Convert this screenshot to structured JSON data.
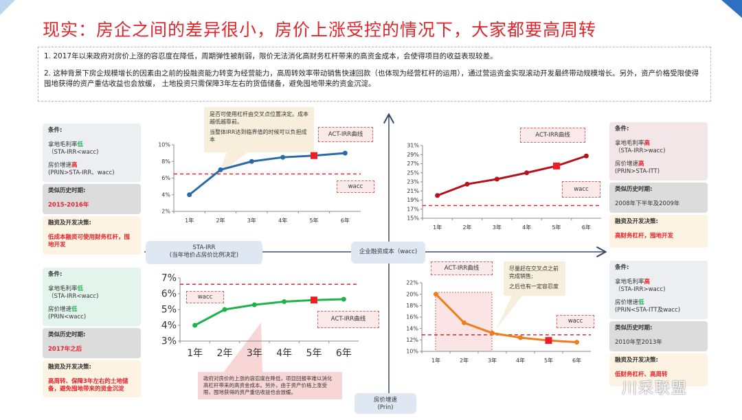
{
  "title": "现实：房企之间的差异很小，房价上涨受控的情况下，大家都要高周转",
  "summary": [
    "1. 2017年以来政府对房价上涨的容忍度在降低，周期弹性被削弱，限价无法消化高财务杠杆带来的高资金成本，会使得项目的收益表现较差。",
    "2. 这种背景下房企规模增长的因素由之前的投融资能力转变为经营能力，高周转效率带动销售快速回款（也体现为经营杠杆的运用），通过营运资金实现滚动开发最终带动规模增长。另外，资产价格受限使得囤地获得的资产重估收益也会放缓， 土地投资只需保障3年左右的货值储备，避免囤地带来的资金沉淀。"
  ],
  "axes": {
    "x_label_line1": "STA-IRR",
    "x_label_line2": "(当年地价占房价比例决定)",
    "center_label": "企业融资成本（wacc)",
    "y_label_line1": "房价增速",
    "y_label_line2": "(Prin)"
  },
  "panels": {
    "top_left": {
      "cond_title": "条件:",
      "c1a": "拿地毛利率",
      "c1b": "低",
      "c1c": "（STA-IRR<wacc)",
      "c2a": "房价增速",
      "c2b": "高",
      "c2c": "(PRIN>STA-IRR、wacc)",
      "hist_title": "类似历史时期:",
      "hist": "2015-2016年",
      "dec_title": "融资及开发决策:",
      "dec": "低成本融资可使用财务杠杆，囤地开发"
    },
    "bottom_left": {
      "cond_title": "条件:",
      "c1a": "拿地毛利率",
      "c1b": "低",
      "c1c": "（STA-IRR<wacc)",
      "c2a": "房价增速",
      "c2b": "低",
      "c2c": "(PRIN<wacc)",
      "hist_title": "类似历史时期:",
      "hist": "2017年之后",
      "dec_title": "融资及开发决策:",
      "dec": "高周转、保障3年左右的土地储备，避免囤地带来的资金沉淀"
    },
    "top_right": {
      "cond_title": "条件:",
      "c1a": "拿地毛利率",
      "c1b": "高",
      "c1c": "（STA-IRR>wacc)",
      "c2a": "房价增速",
      "c2b": "高",
      "c2c": "(PRIN>STA-ITT)",
      "hist_title": "类似历史时期:",
      "hist": "2008年下半年及2009年",
      "dec_title": "融资及开发决策:",
      "dec": "高财务杠杆，囤地开发"
    },
    "bottom_right": {
      "cond_title": "条件:",
      "c1a": "拿地毛利率",
      "c1b": "高",
      "c1c": "（STA-IRR>wacc)",
      "c2a": "房价增速",
      "c2b": "低",
      "c2c": "(PRIN<STA-ITT及wacc)",
      "hist_title": "类似历史时期:",
      "hist": "2010年至2013年",
      "dec_title": "融资及开发决策:",
      "dec": "低财务杠杆、高周转"
    }
  },
  "notes": {
    "tl_a": "是否可使用杠杆由交叉点位置决定。成本越低越靠前。",
    "tl_b": "当整体IRR达到临界值的时候可以负担成本",
    "br_a": "尽量赶在交叉点之前完成销售;",
    "br_b": "之后也有一定容忍度",
    "bl": "政府对房价的上涨的容忍度在降低，项目回报率难以消化高杠杆带来的高资金成本。另外，由于资产价格上涨受限，囤地获得的资产重估收益也会放缓。"
  },
  "watermark": "川采联盟",
  "chart_data": [
    {
      "id": "tl",
      "type": "line",
      "categories": [
        "1年",
        "2年",
        "3年",
        "4年",
        "5年",
        "6年"
      ],
      "series": [
        {
          "name": "ACT-IRR曲线",
          "values": [
            4,
            7,
            8,
            8.5,
            8.7,
            9
          ]
        }
      ],
      "wacc": 6.5,
      "wacc_label": "wacc",
      "ylim": [
        2,
        10
      ],
      "yticks": [
        "2%",
        "4%",
        "6%",
        "8%",
        "10%"
      ],
      "color": "#2a6aa8",
      "highlight_index": 4
    },
    {
      "id": "tr",
      "type": "line",
      "categories": [
        "1年",
        "2年",
        "3年",
        "4年",
        "5年",
        "6年"
      ],
      "series": [
        {
          "name": "ACT-IRR曲线",
          "values": [
            20,
            22.5,
            23.6,
            25,
            26.5,
            28.7
          ]
        }
      ],
      "wacc": 17.8,
      "wacc_label": "wacc",
      "ylim": [
        15,
        31
      ],
      "yticks": [
        "15%",
        "17%",
        "19%",
        "21%",
        "23%",
        "25%",
        "27%",
        "29%",
        "31%"
      ],
      "color": "#b5121b",
      "highlight_index": 4
    },
    {
      "id": "bl",
      "type": "line",
      "categories": [
        "1年",
        "2年",
        "3年",
        "4年",
        "5年",
        "6年"
      ],
      "series": [
        {
          "name": "ACT-IRR曲线",
          "values": [
            4,
            5,
            5.3,
            5.5,
            5.6,
            5.65
          ]
        }
      ],
      "wacc": 6.6,
      "wacc_label": "wacc",
      "ylim": [
        3,
        7
      ],
      "yticks": [
        "3%",
        "4%",
        "5%",
        "6%",
        "7%"
      ],
      "color": "#1db34a",
      "highlight_index": 4
    },
    {
      "id": "br",
      "type": "line",
      "categories": [
        "1年",
        "2年",
        "3年",
        "4年",
        "5年",
        "6年"
      ],
      "series": [
        {
          "name": "ACT-IRR曲线",
          "values": [
            20,
            15,
            13.2,
            12.4,
            11.9,
            11.6
          ]
        }
      ],
      "wacc": 12.9,
      "wacc_label": "wacc",
      "ylim": [
        10,
        22
      ],
      "yticks": [
        "10%",
        "12%",
        "14%",
        "16%",
        "18%",
        "20%",
        "22%"
      ],
      "color": "#f07d1a",
      "highlight_index": 4
    }
  ],
  "colors": {
    "title": "#e0252b",
    "accent_red": "#e8222a",
    "accent_green": "#27b35a",
    "axis": "#3b4a6b"
  }
}
